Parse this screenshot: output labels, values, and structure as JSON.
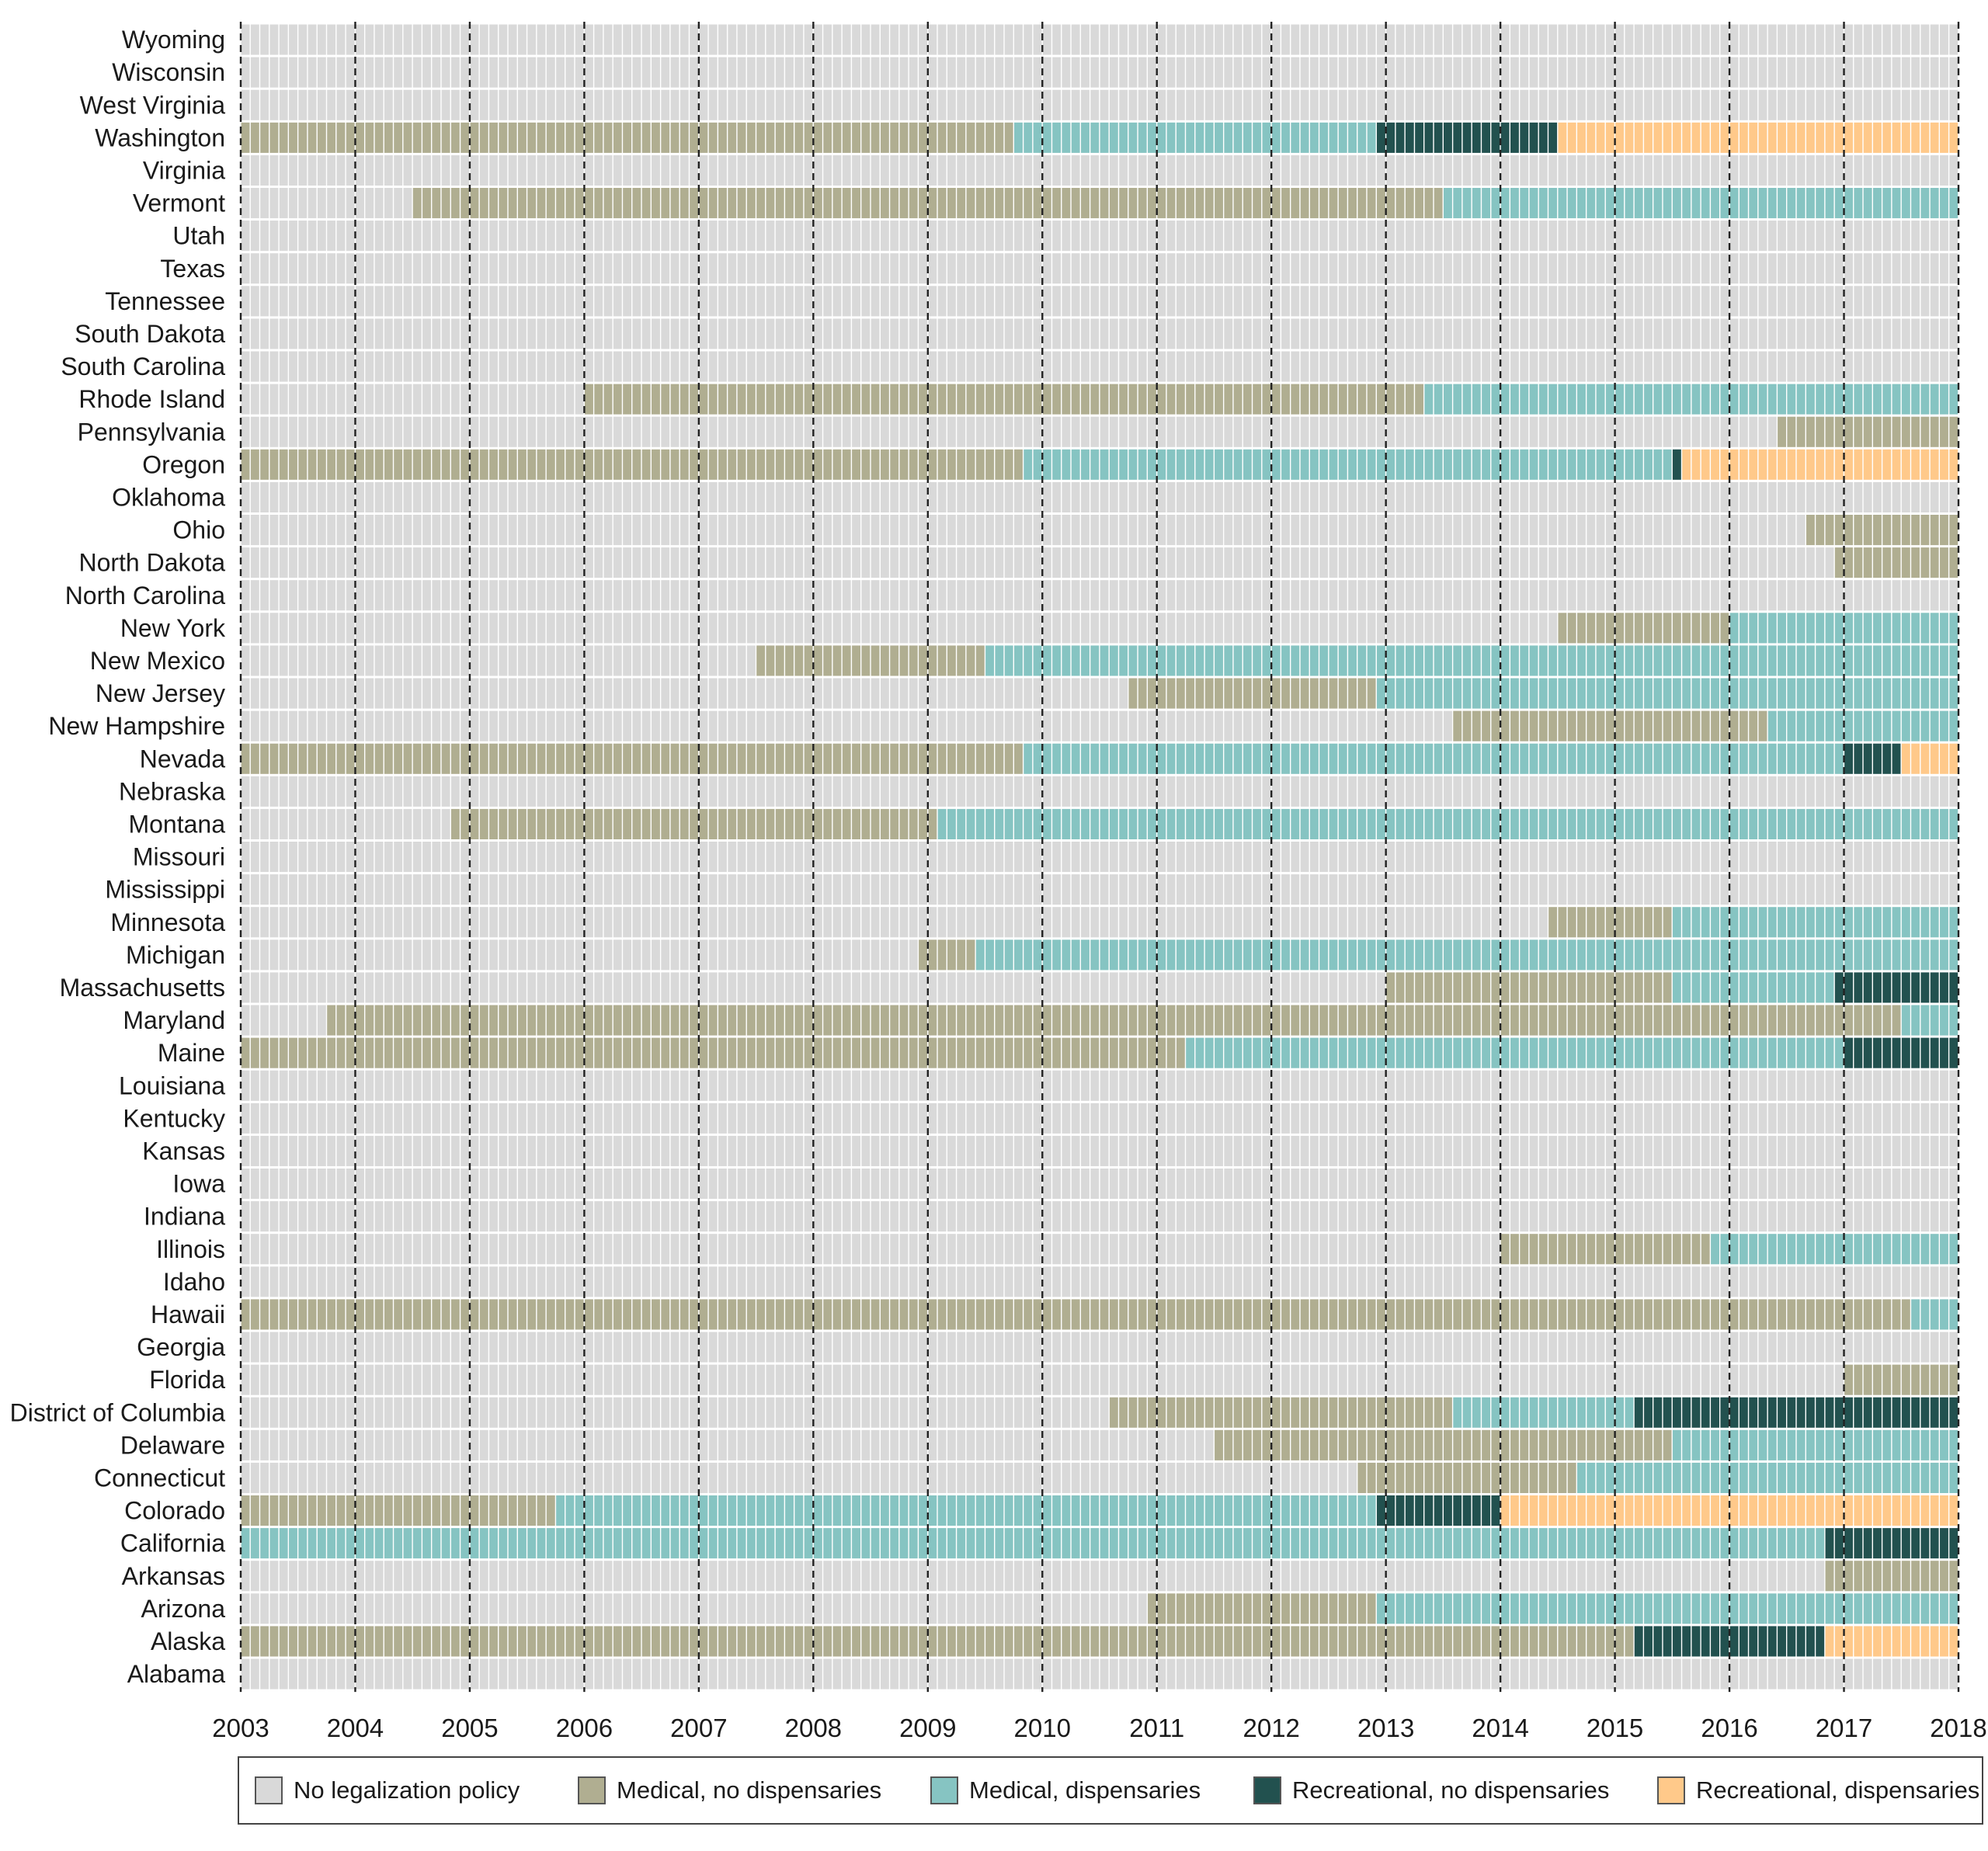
{
  "chart_data": {
    "type": "heatmap",
    "title": "",
    "xlabel": "",
    "ylabel": "",
    "x_range": [
      2003,
      2018
    ],
    "x_ticks": [
      "2003",
      "2004",
      "2005",
      "2006",
      "2007",
      "2008",
      "2009",
      "2010",
      "2011",
      "2012",
      "2013",
      "2014",
      "2015",
      "2016",
      "2017",
      "2018"
    ],
    "categories": [
      {
        "key": "none",
        "label": "No legalization policy",
        "color": "#d9d9d9"
      },
      {
        "key": "med",
        "label": "Medical, no dispensaries",
        "color": "#b0ae91"
      },
      {
        "key": "medd",
        "label": "Medical, dispensaries",
        "color": "#86c4c2"
      },
      {
        "key": "rec",
        "label": "Recreational, no dispensaries",
        "color": "#22514f"
      },
      {
        "key": "recd",
        "label": "Recreational, dispensaries",
        "color": "#ffc98a"
      }
    ],
    "states": [
      {
        "name": "Wyoming",
        "periods": []
      },
      {
        "name": "Wisconsin",
        "periods": []
      },
      {
        "name": "West Virginia",
        "periods": []
      },
      {
        "name": "Washington",
        "periods": [
          {
            "start": 2003.0,
            "end": 2009.75,
            "status": "med"
          },
          {
            "start": 2009.75,
            "end": 2012.92,
            "status": "medd"
          },
          {
            "start": 2012.92,
            "end": 2014.5,
            "status": "rec"
          },
          {
            "start": 2014.5,
            "end": 2018.0,
            "status": "recd"
          }
        ]
      },
      {
        "name": "Virginia",
        "periods": []
      },
      {
        "name": "Vermont",
        "periods": [
          {
            "start": 2004.5,
            "end": 2013.5,
            "status": "med"
          },
          {
            "start": 2013.5,
            "end": 2018.0,
            "status": "medd"
          }
        ]
      },
      {
        "name": "Utah",
        "periods": []
      },
      {
        "name": "Texas",
        "periods": []
      },
      {
        "name": "Tennessee",
        "periods": []
      },
      {
        "name": "South Dakota",
        "periods": []
      },
      {
        "name": "South Carolina",
        "periods": []
      },
      {
        "name": "Rhode Island",
        "periods": [
          {
            "start": 2006.0,
            "end": 2013.33,
            "status": "med"
          },
          {
            "start": 2013.33,
            "end": 2018.0,
            "status": "medd"
          }
        ]
      },
      {
        "name": "Pennsylvania",
        "periods": [
          {
            "start": 2016.42,
            "end": 2018.0,
            "status": "med"
          }
        ]
      },
      {
        "name": "Oregon",
        "periods": [
          {
            "start": 2003.0,
            "end": 2009.83,
            "status": "med"
          },
          {
            "start": 2009.83,
            "end": 2015.5,
            "status": "medd"
          },
          {
            "start": 2015.5,
            "end": 2015.58,
            "status": "rec"
          },
          {
            "start": 2015.58,
            "end": 2018.0,
            "status": "recd"
          }
        ]
      },
      {
        "name": "Oklahoma",
        "periods": []
      },
      {
        "name": "Ohio",
        "periods": [
          {
            "start": 2016.67,
            "end": 2018.0,
            "status": "med"
          }
        ]
      },
      {
        "name": "North Dakota",
        "periods": [
          {
            "start": 2016.92,
            "end": 2018.0,
            "status": "med"
          }
        ]
      },
      {
        "name": "North Carolina",
        "periods": []
      },
      {
        "name": "New York",
        "periods": [
          {
            "start": 2014.5,
            "end": 2016.0,
            "status": "med"
          },
          {
            "start": 2016.0,
            "end": 2018.0,
            "status": "medd"
          }
        ]
      },
      {
        "name": "New Mexico",
        "periods": [
          {
            "start": 2007.5,
            "end": 2009.5,
            "status": "med"
          },
          {
            "start": 2009.5,
            "end": 2018.0,
            "status": "medd"
          }
        ]
      },
      {
        "name": "New Jersey",
        "periods": [
          {
            "start": 2010.75,
            "end": 2012.92,
            "status": "med"
          },
          {
            "start": 2012.92,
            "end": 2018.0,
            "status": "medd"
          }
        ]
      },
      {
        "name": "New Hampshire",
        "periods": [
          {
            "start": 2013.58,
            "end": 2016.33,
            "status": "med"
          },
          {
            "start": 2016.33,
            "end": 2018.0,
            "status": "medd"
          }
        ]
      },
      {
        "name": "Nevada",
        "periods": [
          {
            "start": 2003.0,
            "end": 2009.83,
            "status": "med"
          },
          {
            "start": 2009.83,
            "end": 2017.0,
            "status": "medd"
          },
          {
            "start": 2017.0,
            "end": 2017.5,
            "status": "rec"
          },
          {
            "start": 2017.5,
            "end": 2018.0,
            "status": "recd"
          }
        ]
      },
      {
        "name": "Nebraska",
        "periods": []
      },
      {
        "name": "Montana",
        "periods": [
          {
            "start": 2004.83,
            "end": 2009.08,
            "status": "med"
          },
          {
            "start": 2009.08,
            "end": 2018.0,
            "status": "medd"
          }
        ]
      },
      {
        "name": "Missouri",
        "periods": []
      },
      {
        "name": "Mississippi",
        "periods": []
      },
      {
        "name": "Minnesota",
        "periods": [
          {
            "start": 2014.42,
            "end": 2015.5,
            "status": "med"
          },
          {
            "start": 2015.5,
            "end": 2018.0,
            "status": "medd"
          }
        ]
      },
      {
        "name": "Michigan",
        "periods": [
          {
            "start": 2008.92,
            "end": 2009.42,
            "status": "med"
          },
          {
            "start": 2009.42,
            "end": 2018.0,
            "status": "medd"
          }
        ]
      },
      {
        "name": "Massachusetts",
        "periods": [
          {
            "start": 2013.0,
            "end": 2015.5,
            "status": "med"
          },
          {
            "start": 2015.5,
            "end": 2016.92,
            "status": "medd"
          },
          {
            "start": 2016.92,
            "end": 2018.0,
            "status": "rec"
          }
        ]
      },
      {
        "name": "Maryland",
        "periods": [
          {
            "start": 2003.75,
            "end": 2017.5,
            "status": "med"
          },
          {
            "start": 2017.5,
            "end": 2018.0,
            "status": "medd"
          }
        ]
      },
      {
        "name": "Maine",
        "periods": [
          {
            "start": 2003.0,
            "end": 2011.25,
            "status": "med"
          },
          {
            "start": 2011.25,
            "end": 2017.0,
            "status": "medd"
          },
          {
            "start": 2017.0,
            "end": 2018.0,
            "status": "rec"
          }
        ]
      },
      {
        "name": "Louisiana",
        "periods": []
      },
      {
        "name": "Kentucky",
        "periods": []
      },
      {
        "name": "Kansas",
        "periods": []
      },
      {
        "name": "Iowa",
        "periods": []
      },
      {
        "name": "Indiana",
        "periods": []
      },
      {
        "name": "Illinois",
        "periods": [
          {
            "start": 2014.0,
            "end": 2015.83,
            "status": "med"
          },
          {
            "start": 2015.83,
            "end": 2018.0,
            "status": "medd"
          }
        ]
      },
      {
        "name": "Idaho",
        "periods": []
      },
      {
        "name": "Hawaii",
        "periods": [
          {
            "start": 2003.0,
            "end": 2017.58,
            "status": "med"
          },
          {
            "start": 2017.58,
            "end": 2018.0,
            "status": "medd"
          }
        ]
      },
      {
        "name": "Georgia",
        "periods": []
      },
      {
        "name": "Florida",
        "periods": [
          {
            "start": 2017.0,
            "end": 2018.0,
            "status": "med"
          }
        ]
      },
      {
        "name": "District of Columbia",
        "periods": [
          {
            "start": 2010.58,
            "end": 2013.58,
            "status": "med"
          },
          {
            "start": 2013.58,
            "end": 2015.17,
            "status": "medd"
          },
          {
            "start": 2015.17,
            "end": 2018.0,
            "status": "rec"
          }
        ]
      },
      {
        "name": "Delaware",
        "periods": [
          {
            "start": 2011.5,
            "end": 2015.5,
            "status": "med"
          },
          {
            "start": 2015.5,
            "end": 2018.0,
            "status": "medd"
          }
        ]
      },
      {
        "name": "Connecticut",
        "periods": [
          {
            "start": 2012.75,
            "end": 2014.67,
            "status": "med"
          },
          {
            "start": 2014.67,
            "end": 2018.0,
            "status": "medd"
          }
        ]
      },
      {
        "name": "Colorado",
        "periods": [
          {
            "start": 2003.0,
            "end": 2005.75,
            "status": "med"
          },
          {
            "start": 2005.75,
            "end": 2012.92,
            "status": "medd"
          },
          {
            "start": 2012.92,
            "end": 2014.0,
            "status": "rec"
          },
          {
            "start": 2014.0,
            "end": 2018.0,
            "status": "recd"
          }
        ]
      },
      {
        "name": "California",
        "periods": [
          {
            "start": 2003.0,
            "end": 2016.83,
            "status": "medd"
          },
          {
            "start": 2016.83,
            "end": 2018.0,
            "status": "rec"
          }
        ]
      },
      {
        "name": "Arkansas",
        "periods": [
          {
            "start": 2016.83,
            "end": 2018.0,
            "status": "med"
          }
        ]
      },
      {
        "name": "Arizona",
        "periods": [
          {
            "start": 2010.92,
            "end": 2012.92,
            "status": "med"
          },
          {
            "start": 2012.92,
            "end": 2018.0,
            "status": "medd"
          }
        ]
      },
      {
        "name": "Alaska",
        "periods": [
          {
            "start": 2003.0,
            "end": 2015.17,
            "status": "med"
          },
          {
            "start": 2015.17,
            "end": 2016.83,
            "status": "rec"
          },
          {
            "start": 2016.83,
            "end": 2018.0,
            "status": "recd"
          }
        ]
      },
      {
        "name": "Alabama",
        "periods": []
      }
    ]
  }
}
